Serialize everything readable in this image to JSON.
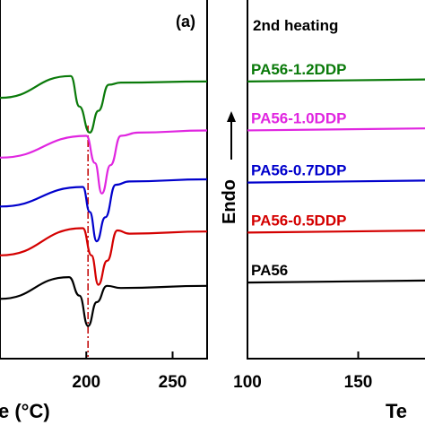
{
  "chart_data": [
    {
      "type": "line",
      "panel_label": "(a)",
      "xlabel_visible": "e (°C)",
      "xlim": [
        150,
        270
      ],
      "x_ticks": [
        200,
        250
      ],
      "x_tick_labels": [
        "200",
        "250"
      ],
      "guide_line": {
        "x": 201,
        "style": "dash-dot",
        "color": "#c00000"
      },
      "series": [
        {
          "color": "#000000",
          "x": [
            150,
            190,
            196,
            201,
            206,
            212,
            220,
            270
          ],
          "y": [
            -0.95,
            -0.75,
            -0.92,
            -1.2,
            -0.98,
            -0.83,
            -0.85,
            -0.83
          ]
        },
        {
          "color": "#d40000",
          "x": [
            150,
            198,
            203,
            207,
            212,
            218,
            225,
            270
          ],
          "y": [
            -0.55,
            -0.3,
            -0.55,
            -0.82,
            -0.6,
            -0.32,
            -0.35,
            -0.33
          ]
        },
        {
          "color": "#0000cc",
          "x": [
            150,
            198,
            202,
            206,
            211,
            217,
            225,
            270
          ],
          "y": [
            -0.1,
            0.08,
            -0.15,
            -0.42,
            -0.2,
            0.1,
            0.13,
            0.15
          ]
        },
        {
          "color": "#e026e0",
          "x": [
            150,
            200,
            205,
            209,
            214,
            220,
            230,
            270
          ],
          "y": [
            0.35,
            0.55,
            0.3,
            0.02,
            0.28,
            0.55,
            0.58,
            0.6
          ]
        },
        {
          "color": "#0a7a0a",
          "x": [
            150,
            191,
            196,
            202,
            207,
            213,
            220,
            270
          ],
          "y": [
            0.9,
            1.1,
            0.82,
            0.58,
            0.78,
            1.02,
            1.04,
            1.05
          ]
        }
      ]
    },
    {
      "type": "line",
      "annotation": "2nd heating",
      "ylabel": "Endo",
      "xlabel_visible": "Te",
      "xlim": [
        100,
        185
      ],
      "x_ticks": [
        100,
        150
      ],
      "x_tick_labels": [
        "100",
        "150"
      ],
      "series": [
        {
          "name": "PA56-1.2DDP",
          "color": "#0a7a0a",
          "x": [
            100,
            185
          ],
          "y": [
            1.05,
            1.07
          ]
        },
        {
          "name": "PA56-1.0DDP",
          "color": "#e026e0",
          "x": [
            100,
            185
          ],
          "y": [
            0.6,
            0.62
          ]
        },
        {
          "name": "PA56-0.7DDP",
          "color": "#0000cc",
          "x": [
            100,
            185
          ],
          "y": [
            0.12,
            0.14
          ]
        },
        {
          "name": "PA56-0.5DDP",
          "color": "#d40000",
          "x": [
            100,
            185
          ],
          "y": [
            -0.34,
            -0.32
          ]
        },
        {
          "name": "PA56",
          "color": "#000000",
          "x": [
            100,
            185
          ],
          "y": [
            -0.8,
            -0.78
          ]
        }
      ]
    }
  ]
}
